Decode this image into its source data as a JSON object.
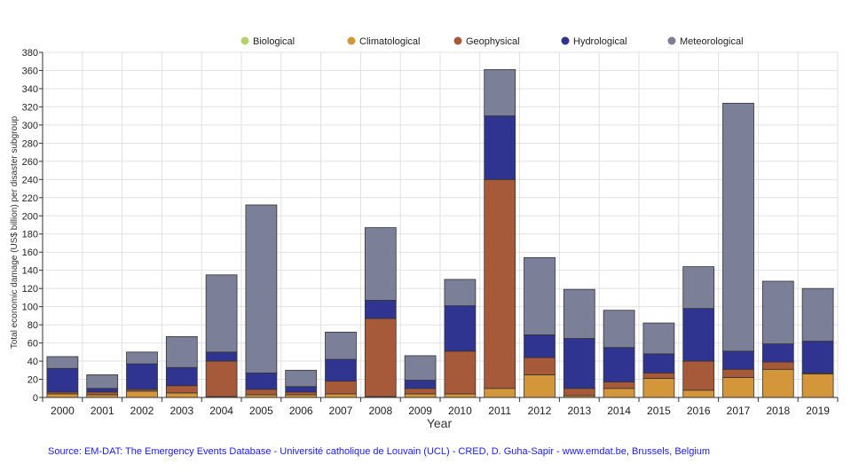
{
  "chart_data": {
    "type": "bar",
    "stacked": true,
    "xlabel": "Year",
    "ylabel": "Total economic damage (US$ billion) per  disaster subgroup",
    "ylim": [
      0,
      380
    ],
    "ytick_step": 20,
    "grid": true,
    "legend_position": "top",
    "categories": [
      "2000",
      "2001",
      "2002",
      "2003",
      "2004",
      "2005",
      "2006",
      "2007",
      "2008",
      "2009",
      "2010",
      "2011",
      "2012",
      "2013",
      "2014",
      "2015",
      "2016",
      "2017",
      "2018",
      "2019"
    ],
    "series": [
      {
        "name": "Biological",
        "color": "#b5d16a",
        "values": [
          0,
          0,
          0,
          0,
          0,
          0,
          0,
          0,
          0,
          0,
          0,
          0,
          0,
          0,
          0,
          0,
          0,
          0,
          0,
          0
        ]
      },
      {
        "name": "Climatological",
        "color": "#d4963a",
        "values": [
          4,
          3,
          7,
          5,
          1,
          3,
          3,
          4,
          1,
          4,
          4,
          10,
          25,
          2,
          10,
          21,
          8,
          22,
          31,
          26
        ]
      },
      {
        "name": "Geophysical",
        "color": "#a65a3a",
        "values": [
          2,
          3,
          2,
          8,
          39,
          6,
          3,
          14,
          86,
          6,
          47,
          230,
          19,
          8,
          7,
          6,
          32,
          9,
          8,
          1
        ]
      },
      {
        "name": "Hydrological",
        "color": "#2e348f",
        "values": [
          26,
          4,
          28,
          20,
          10,
          18,
          6,
          24,
          20,
          9,
          50,
          70,
          25,
          55,
          38,
          21,
          58,
          20,
          20,
          35
        ]
      },
      {
        "name": "Meteorological",
        "color": "#7b7f98",
        "values": [
          13,
          15,
          13,
          34,
          85,
          185,
          18,
          30,
          80,
          27,
          29,
          51,
          85,
          54,
          41,
          34,
          46,
          273,
          69,
          58
        ]
      }
    ]
  },
  "source_text": "Source: EM-DAT: The Emergency Events Database - Université catholique de Louvain (UCL) - CRED, D. Guha-Sapir - www.emdat.be, Brussels, Belgium"
}
